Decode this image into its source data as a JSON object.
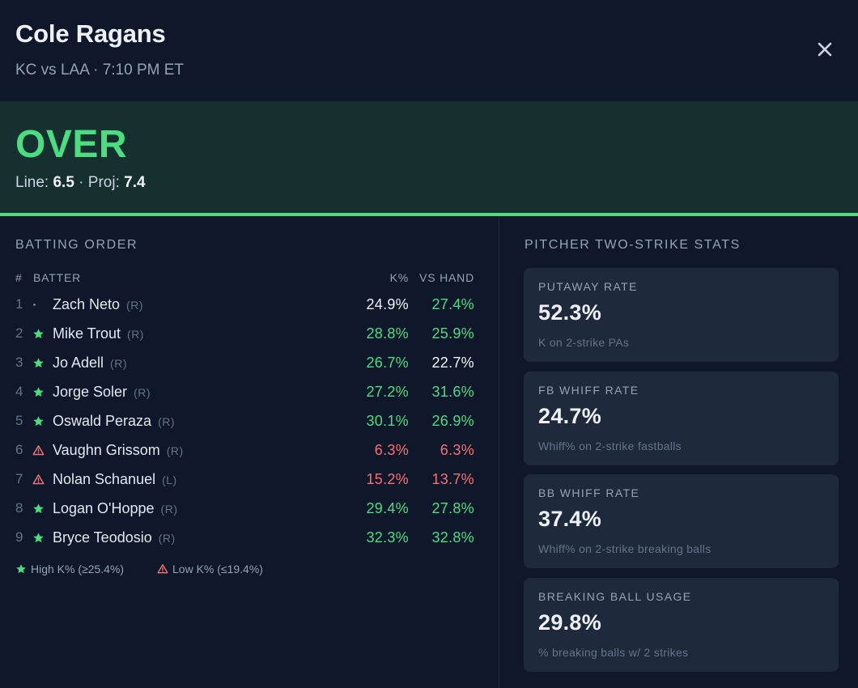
{
  "header": {
    "title": "Cole Ragans",
    "subtitle": "KC vs LAA · 7:10 PM ET"
  },
  "verdict": {
    "call": "OVER",
    "line_label": "Line:",
    "line_value": "6.5",
    "sep": " · ",
    "proj_label": "Proj:",
    "proj_value": "7.4"
  },
  "batting": {
    "title": "BATTING ORDER",
    "columns": {
      "num": "#",
      "batter": "BATTER",
      "k": "K%",
      "vs": "VS HAND"
    },
    "rows": [
      {
        "num": "1",
        "mark": "dot",
        "name": "Zach Neto",
        "hand": "(R)",
        "k": "24.9%",
        "k_tone": "white",
        "vs": "27.4%",
        "vs_tone": "green"
      },
      {
        "num": "2",
        "mark": "star",
        "name": "Mike Trout",
        "hand": "(R)",
        "k": "28.8%",
        "k_tone": "green",
        "vs": "25.9%",
        "vs_tone": "green"
      },
      {
        "num": "3",
        "mark": "star",
        "name": "Jo Adell",
        "hand": "(R)",
        "k": "26.7%",
        "k_tone": "green",
        "vs": "22.7%",
        "vs_tone": "white"
      },
      {
        "num": "4",
        "mark": "star",
        "name": "Jorge Soler",
        "hand": "(R)",
        "k": "27.2%",
        "k_tone": "green",
        "vs": "31.6%",
        "vs_tone": "green"
      },
      {
        "num": "5",
        "mark": "star",
        "name": "Oswald Peraza",
        "hand": "(R)",
        "k": "30.1%",
        "k_tone": "green",
        "vs": "26.9%",
        "vs_tone": "green"
      },
      {
        "num": "6",
        "mark": "warn",
        "name": "Vaughn Grissom",
        "hand": "(R)",
        "k": "6.3%",
        "k_tone": "red",
        "vs": "6.3%",
        "vs_tone": "red"
      },
      {
        "num": "7",
        "mark": "warn",
        "name": "Nolan Schanuel",
        "hand": "(L)",
        "k": "15.2%",
        "k_tone": "red",
        "vs": "13.7%",
        "vs_tone": "red"
      },
      {
        "num": "8",
        "mark": "star",
        "name": "Logan O'Hoppe",
        "hand": "(R)",
        "k": "29.4%",
        "k_tone": "green",
        "vs": "27.8%",
        "vs_tone": "green"
      },
      {
        "num": "9",
        "mark": "star",
        "name": "Bryce Teodosio",
        "hand": "(R)",
        "k": "32.3%",
        "k_tone": "green",
        "vs": "32.8%",
        "vs_tone": "green"
      }
    ],
    "legend": {
      "high": "High K% (≥25.4%)",
      "low": "Low K% (≤19.4%)"
    }
  },
  "pitcher": {
    "title": "PITCHER TWO-STRIKE STATS",
    "cards": [
      {
        "label": "PUTAWAY RATE",
        "value": "52.3%",
        "desc": "K on 2-strike PAs"
      },
      {
        "label": "FB WHIFF RATE",
        "value": "24.7%",
        "desc": "Whiff% on 2-strike fastballs"
      },
      {
        "label": "BB WHIFF RATE",
        "value": "37.4%",
        "desc": "Whiff% on 2-strike breaking balls"
      },
      {
        "label": "BREAKING BALL USAGE",
        "value": "29.8%",
        "desc": "% breaking balls w/ 2 strikes"
      }
    ]
  },
  "colors": {
    "green": "#4ade80",
    "red": "#f87171",
    "white": "#f1f5f9"
  },
  "icons": {
    "close": "close-icon",
    "high": "star-icon",
    "low": "warning-icon",
    "neutral": "dot-icon"
  }
}
